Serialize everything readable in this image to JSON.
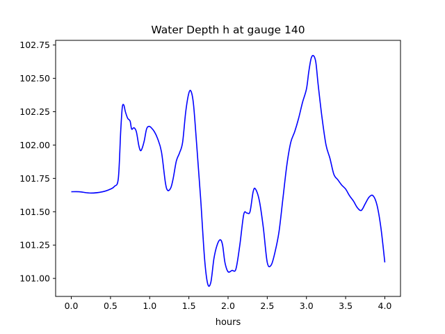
{
  "chart_data": {
    "type": "line",
    "title": "Water Depth h at gauge 140",
    "xlabel": "hours",
    "ylabel": "",
    "xlim": [
      -0.2,
      4.2
    ],
    "ylim": [
      100.865,
      102.785
    ],
    "xticks": [
      0.0,
      0.5,
      1.0,
      1.5,
      2.0,
      2.5,
      3.0,
      3.5,
      4.0
    ],
    "xtick_labels": [
      "0.0",
      "0.5",
      "1.0",
      "1.5",
      "2.0",
      "2.5",
      "3.0",
      "3.5",
      "4.0"
    ],
    "yticks": [
      101.0,
      101.25,
      101.5,
      101.75,
      102.0,
      102.25,
      102.5,
      102.75
    ],
    "ytick_labels": [
      "101.00",
      "101.25",
      "101.50",
      "101.75",
      "102.00",
      "102.25",
      "102.50",
      "102.75"
    ],
    "grid": false,
    "legend": "none",
    "series": [
      {
        "color": "#0000ff",
        "x": [
          0.0,
          0.1,
          0.25,
          0.4,
          0.5,
          0.55,
          0.6,
          0.63,
          0.65,
          0.67,
          0.69,
          0.72,
          0.75,
          0.77,
          0.8,
          0.83,
          0.86,
          0.88,
          0.9,
          0.93,
          0.96,
          0.99,
          1.02,
          1.06,
          1.1,
          1.15,
          1.2,
          1.23,
          1.27,
          1.3,
          1.34,
          1.38,
          1.42,
          1.46,
          1.5,
          1.53,
          1.56,
          1.6,
          1.65,
          1.7,
          1.74,
          1.78,
          1.82,
          1.86,
          1.9,
          1.93,
          1.96,
          2.0,
          2.05,
          2.1,
          2.15,
          2.2,
          2.24,
          2.28,
          2.32,
          2.35,
          2.4,
          2.45,
          2.5,
          2.55,
          2.6,
          2.65,
          2.7,
          2.75,
          2.8,
          2.85,
          2.9,
          2.95,
          3.0,
          3.03,
          3.06,
          3.09,
          3.12,
          3.15,
          3.2,
          3.25,
          3.3,
          3.35,
          3.4,
          3.45,
          3.5,
          3.55,
          3.6,
          3.65,
          3.7,
          3.75,
          3.8,
          3.85,
          3.9,
          3.95,
          4.0
        ],
        "y": [
          101.65,
          101.65,
          101.64,
          101.65,
          101.67,
          101.69,
          101.75,
          102.1,
          102.28,
          102.3,
          102.25,
          102.2,
          102.18,
          102.12,
          102.13,
          102.1,
          102.0,
          101.96,
          101.97,
          102.03,
          102.12,
          102.14,
          102.13,
          102.1,
          102.05,
          101.95,
          101.72,
          101.66,
          101.68,
          101.75,
          101.88,
          101.94,
          102.02,
          102.25,
          102.39,
          102.4,
          102.3,
          102.0,
          101.6,
          101.15,
          100.96,
          100.97,
          101.15,
          101.25,
          101.29,
          101.25,
          101.12,
          101.05,
          101.06,
          101.07,
          101.25,
          101.48,
          101.49,
          101.5,
          101.65,
          101.67,
          101.58,
          101.38,
          101.12,
          101.1,
          101.2,
          101.35,
          101.6,
          101.85,
          102.02,
          102.1,
          102.2,
          102.32,
          102.42,
          102.55,
          102.65,
          102.67,
          102.62,
          102.45,
          102.2,
          102.0,
          101.9,
          101.78,
          101.74,
          101.7,
          101.67,
          101.62,
          101.58,
          101.53,
          101.51,
          101.56,
          101.61,
          101.62,
          101.55,
          101.38,
          101.12
        ]
      }
    ]
  }
}
